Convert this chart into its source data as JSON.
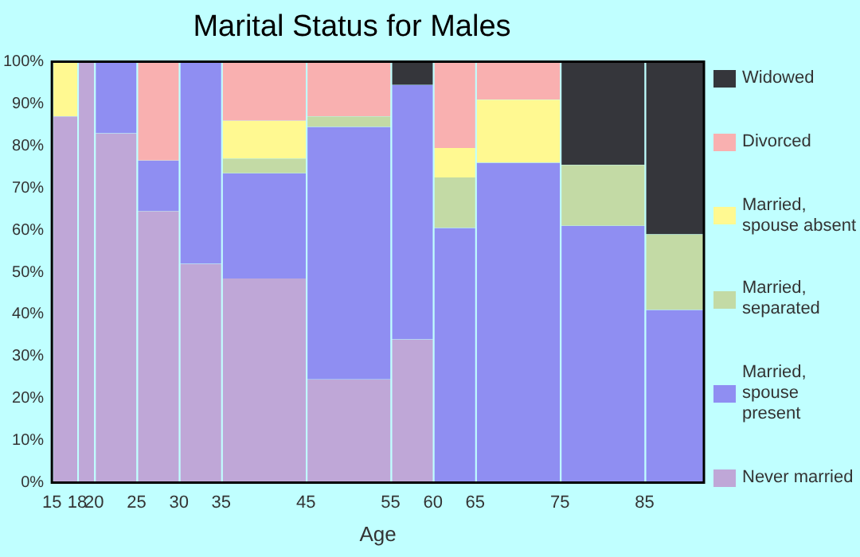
{
  "chart_data": {
    "type": "bar",
    "title": "Marital Status for Males",
    "xlabel": "Age",
    "stacked": true,
    "x": [
      16.5,
      19,
      22.5,
      27.5,
      32.5,
      40,
      50,
      57.5,
      62.5,
      70,
      80,
      88.5
    ],
    "xlim": [
      15,
      92
    ],
    "xticks": [
      15,
      18,
      20,
      25,
      30,
      35,
      45,
      55,
      60,
      65,
      75,
      85
    ],
    "ylim": [
      0,
      100
    ],
    "yticks": [
      {
        "value": 0,
        "label": "0%"
      },
      {
        "value": 10,
        "label": "10%"
      },
      {
        "value": 20,
        "label": "20%"
      },
      {
        "value": 30,
        "label": "30%"
      },
      {
        "value": 40,
        "label": "40%"
      },
      {
        "value": 50,
        "label": "50%"
      },
      {
        "value": 60,
        "label": "60%"
      },
      {
        "value": 70,
        "label": "70%"
      },
      {
        "value": 80,
        "label": "80%"
      },
      {
        "value": 90,
        "label": "90%"
      },
      {
        "value": 100,
        "label": "100%"
      }
    ],
    "legend": "right",
    "series": [
      {
        "name": "Never married",
        "color": "#bfa7d7",
        "values": [
          87,
          100,
          83,
          64.5,
          52,
          48.5,
          24.5,
          34,
          null,
          null,
          null,
          null
        ]
      },
      {
        "name": "Married, spouse present",
        "color": "#8f8ef2",
        "values": [
          null,
          null,
          17,
          12,
          48,
          25,
          60,
          60.5,
          60.5,
          76,
          61,
          41
        ]
      },
      {
        "name": "Married, separated",
        "color": "#c3daa5",
        "values": [
          null,
          null,
          null,
          null,
          null,
          3.5,
          2.5,
          null,
          12,
          null,
          14.5,
          18
        ]
      },
      {
        "name": "Married, spouse absent",
        "color": "#fff991",
        "values": [
          13,
          null,
          null,
          null,
          null,
          9,
          null,
          null,
          7,
          15,
          null,
          null
        ]
      },
      {
        "name": "Divorced",
        "color": "#f9b0b0",
        "values": [
          null,
          null,
          null,
          23.5,
          null,
          14,
          13,
          null,
          20.5,
          9,
          null,
          null
        ]
      },
      {
        "name": "Widowed",
        "color": "#35363b",
        "values": [
          null,
          null,
          null,
          null,
          null,
          null,
          null,
          5.5,
          null,
          null,
          24.5,
          41
        ]
      }
    ]
  }
}
